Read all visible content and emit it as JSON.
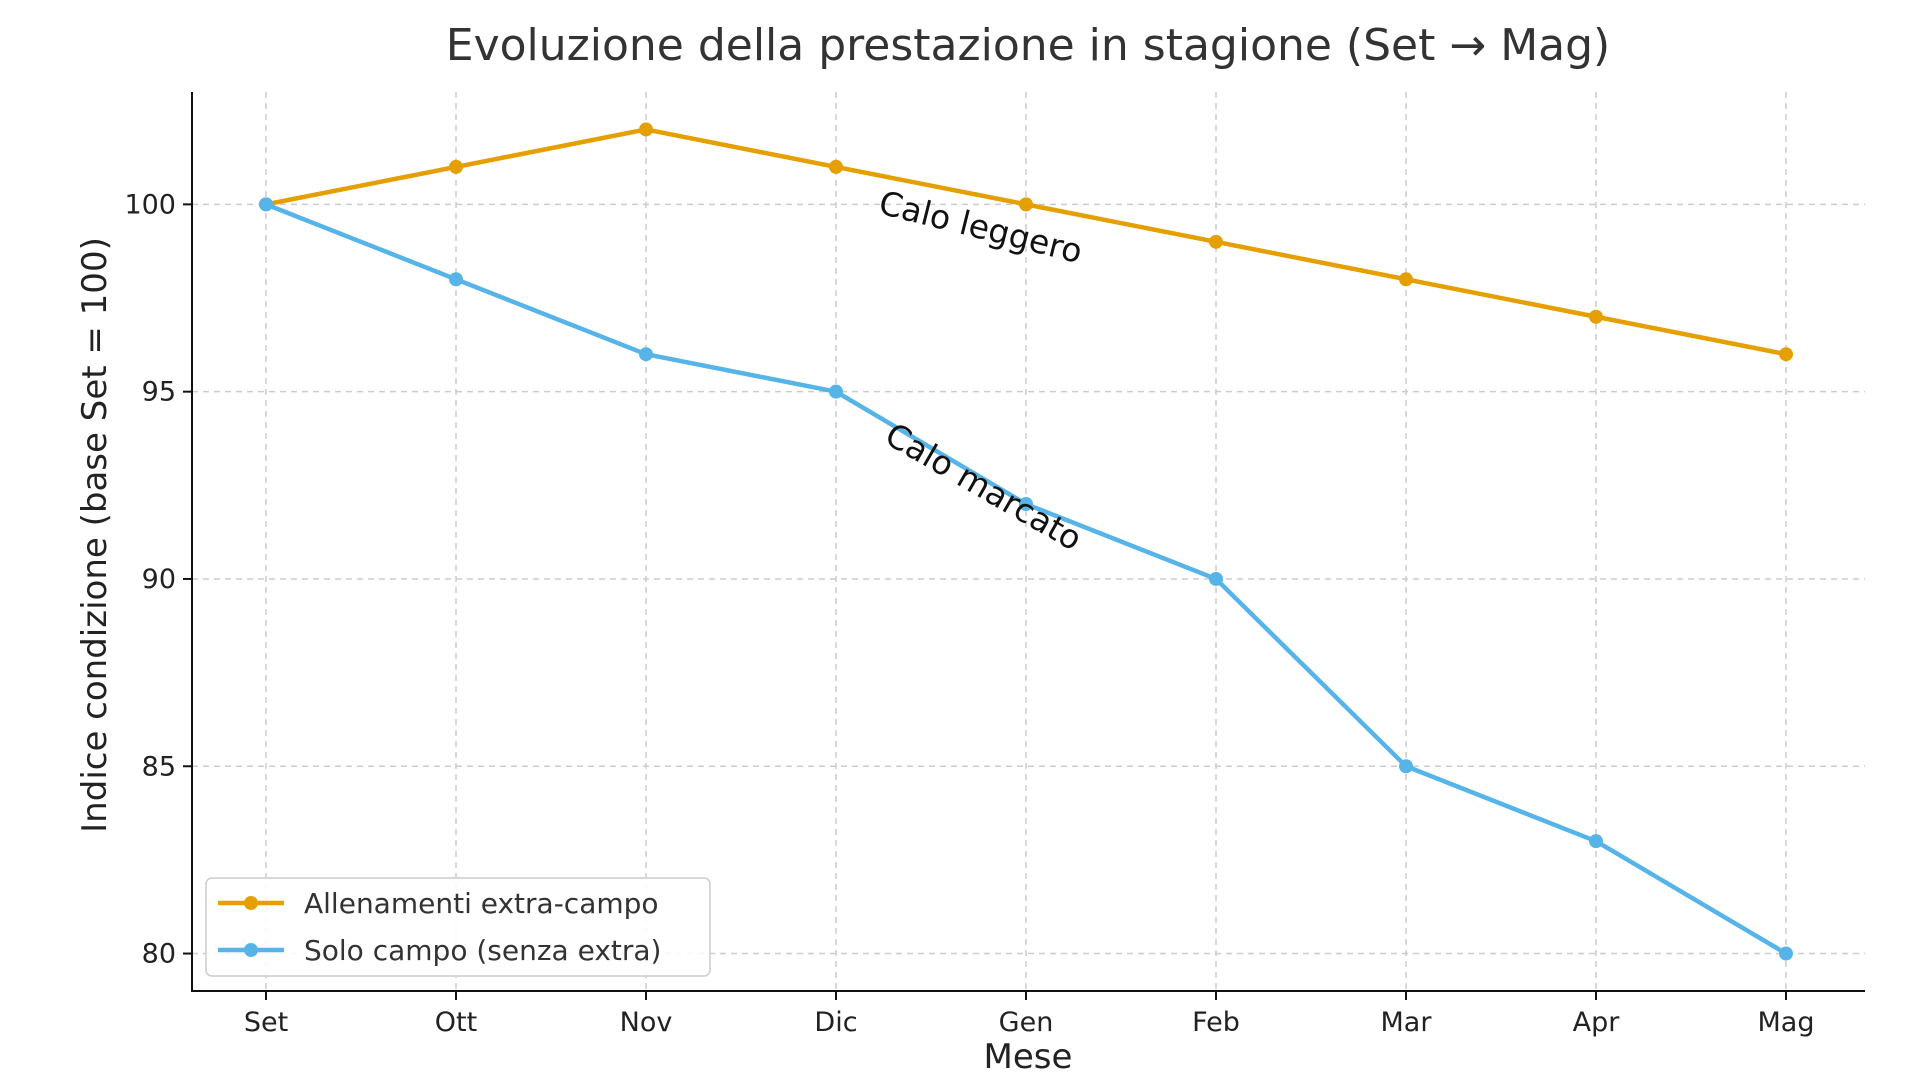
{
  "chart_data": {
    "type": "line",
    "title": "Evoluzione della prestazione in stagione (Set → Mag)",
    "xlabel": "Mese",
    "ylabel": "Indice condizione (base Set = 100)",
    "categories": [
      "Set",
      "Ott",
      "Nov",
      "Dic",
      "Gen",
      "Feb",
      "Mar",
      "Apr",
      "Mag"
    ],
    "ylim": [
      79,
      103
    ],
    "yticks": [
      80,
      85,
      90,
      95,
      100
    ],
    "grid": true,
    "legend_position": "bottom-left",
    "series": [
      {
        "name": "Allenamenti extra-campo",
        "color": "#E69F00",
        "values": [
          100,
          101,
          102,
          101,
          100,
          99,
          98,
          97,
          96
        ]
      },
      {
        "name": "Solo campo (senza extra)",
        "color": "#56B4E9",
        "values": [
          100,
          98,
          96,
          95,
          92,
          90,
          85,
          83,
          80
        ]
      }
    ],
    "annotations": [
      {
        "text": "Calo leggero",
        "x": "Dic",
        "y": 99.1,
        "rotation": 14
      },
      {
        "text": "Calo marcato",
        "x": "Dic",
        "y": 92.2,
        "rotation": 30
      }
    ]
  }
}
